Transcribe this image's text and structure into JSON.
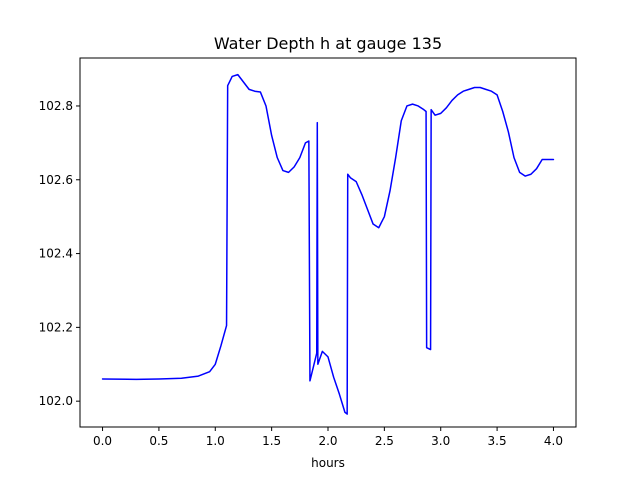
{
  "chart_data": {
    "type": "line",
    "title": "Water Depth h at gauge 135",
    "xlabel": "hours",
    "ylabel": "",
    "xlim": [
      -0.2,
      4.2
    ],
    "ylim": [
      101.93,
      102.93
    ],
    "grid": false,
    "legend": "none",
    "x_ticks": [
      "0.0",
      "0.5",
      "1.0",
      "1.5",
      "2.0",
      "2.5",
      "3.0",
      "3.5",
      "4.0"
    ],
    "x_tick_values": [
      0,
      0.5,
      1.0,
      1.5,
      2.0,
      2.5,
      3.0,
      3.5,
      4.0
    ],
    "y_ticks": [
      "102.0",
      "102.2",
      "102.4",
      "102.6",
      "102.8"
    ],
    "y_tick_values": [
      102.0,
      102.2,
      102.4,
      102.6,
      102.8
    ],
    "series": [
      {
        "color": "#0000ff",
        "x": [
          0.0,
          0.3,
          0.5,
          0.7,
          0.85,
          0.95,
          1.0,
          1.05,
          1.1,
          1.11,
          1.15,
          1.2,
          1.25,
          1.3,
          1.35,
          1.4,
          1.45,
          1.5,
          1.55,
          1.6,
          1.65,
          1.7,
          1.75,
          1.8,
          1.83,
          1.84,
          1.9,
          1.905,
          1.91,
          1.95,
          2.0,
          2.05,
          2.1,
          2.15,
          2.17,
          2.175,
          2.2,
          2.25,
          2.3,
          2.35,
          2.4,
          2.45,
          2.5,
          2.55,
          2.6,
          2.65,
          2.7,
          2.75,
          2.8,
          2.85,
          2.87,
          2.875,
          2.91,
          2.915,
          2.95,
          3.0,
          3.05,
          3.1,
          3.15,
          3.2,
          3.25,
          3.3,
          3.35,
          3.4,
          3.45,
          3.5,
          3.55,
          3.6,
          3.65,
          3.7,
          3.75,
          3.8,
          3.85,
          3.9,
          3.95,
          4.0
        ],
        "y": [
          102.06,
          102.059,
          102.06,
          102.062,
          102.068,
          102.08,
          102.1,
          102.15,
          102.205,
          102.855,
          102.88,
          102.885,
          102.865,
          102.845,
          102.84,
          102.838,
          102.8,
          102.72,
          102.66,
          102.625,
          102.62,
          102.635,
          102.66,
          102.7,
          102.705,
          102.055,
          102.13,
          102.755,
          102.1,
          102.135,
          102.12,
          102.065,
          102.02,
          101.97,
          101.965,
          102.615,
          102.605,
          102.595,
          102.56,
          102.52,
          102.48,
          102.47,
          102.5,
          102.57,
          102.66,
          102.76,
          102.8,
          102.805,
          102.8,
          102.79,
          102.785,
          102.145,
          102.14,
          102.79,
          102.775,
          102.78,
          102.795,
          102.815,
          102.83,
          102.84,
          102.845,
          102.85,
          102.85,
          102.845,
          102.84,
          102.83,
          102.785,
          102.73,
          102.66,
          102.62,
          102.61,
          102.615,
          102.63,
          102.655,
          102.655,
          102.655
        ]
      }
    ]
  }
}
